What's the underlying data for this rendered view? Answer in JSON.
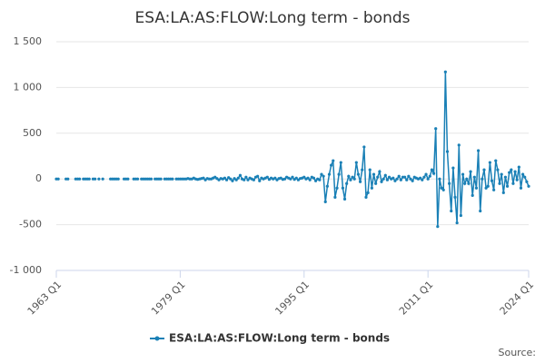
{
  "chart_data": {
    "type": "line",
    "title": "ESA:LA:AS:FLOW:Long term - bonds",
    "source": "Source:",
    "x": [
      "1963 Q1",
      "1963 Q2",
      "1963 Q3",
      "1963 Q4",
      "1964 Q1",
      "1964 Q2",
      "1964 Q3",
      "1964 Q4",
      "1965 Q1",
      "1965 Q2",
      "1965 Q3",
      "1965 Q4",
      "1966 Q1",
      "1966 Q2",
      "1966 Q3",
      "1966 Q4",
      "1967 Q1",
      "1967 Q2",
      "1967 Q3",
      "1967 Q4",
      "1968 Q1",
      "1968 Q2",
      "1968 Q3",
      "1968 Q4",
      "1969 Q1",
      "1969 Q2",
      "1969 Q3",
      "1969 Q4",
      "1970 Q1",
      "1970 Q2",
      "1970 Q3",
      "1970 Q4",
      "1971 Q1",
      "1971 Q2",
      "1971 Q3",
      "1971 Q4",
      "1972 Q1",
      "1972 Q2",
      "1972 Q3",
      "1972 Q4",
      "1973 Q1",
      "1973 Q2",
      "1973 Q3",
      "1973 Q4",
      "1974 Q1",
      "1974 Q2",
      "1974 Q3",
      "1974 Q4",
      "1975 Q1",
      "1975 Q2",
      "1975 Q3",
      "1975 Q4",
      "1976 Q1",
      "1976 Q2",
      "1976 Q3",
      "1976 Q4",
      "1977 Q1",
      "1977 Q2",
      "1977 Q3",
      "1977 Q4",
      "1978 Q1",
      "1978 Q2",
      "1978 Q3",
      "1978 Q4",
      "1979 Q1",
      "1979 Q2",
      "1979 Q3",
      "1979 Q4",
      "1980 Q1",
      "1980 Q2",
      "1980 Q3",
      "1980 Q4",
      "1981 Q1",
      "1981 Q2",
      "1981 Q3",
      "1981 Q4",
      "1982 Q1",
      "1982 Q2",
      "1982 Q3",
      "1982 Q4",
      "1983 Q1",
      "1983 Q2",
      "1983 Q3",
      "1983 Q4",
      "1984 Q1",
      "1984 Q2",
      "1984 Q3",
      "1984 Q4",
      "1985 Q1",
      "1985 Q2",
      "1985 Q3",
      "1985 Q4",
      "1986 Q1",
      "1986 Q2",
      "1986 Q3",
      "1986 Q4",
      "1987 Q1",
      "1987 Q2",
      "1987 Q3",
      "1987 Q4",
      "1988 Q1",
      "1988 Q2",
      "1988 Q3",
      "1988 Q4",
      "1989 Q1",
      "1989 Q2",
      "1989 Q3",
      "1989 Q4",
      "1990 Q1",
      "1990 Q2",
      "1990 Q3",
      "1990 Q4",
      "1991 Q1",
      "1991 Q2",
      "1991 Q3",
      "1991 Q4",
      "1992 Q1",
      "1992 Q2",
      "1992 Q3",
      "1992 Q4",
      "1993 Q1",
      "1993 Q2",
      "1993 Q3",
      "1993 Q4",
      "1994 Q1",
      "1994 Q2",
      "1994 Q3",
      "1994 Q4",
      "1995 Q1",
      "1995 Q2",
      "1995 Q3",
      "1995 Q4",
      "1996 Q1",
      "1996 Q2",
      "1996 Q3",
      "1996 Q4",
      "1997 Q1",
      "1997 Q2",
      "1997 Q3",
      "1997 Q4",
      "1998 Q1",
      "1998 Q2",
      "1998 Q3",
      "1998 Q4",
      "1999 Q1",
      "1999 Q2",
      "1999 Q3",
      "1999 Q4",
      "2000 Q1",
      "2000 Q2",
      "2000 Q3",
      "2000 Q4",
      "2001 Q1",
      "2001 Q2",
      "2001 Q3",
      "2001 Q4",
      "2002 Q1",
      "2002 Q2",
      "2002 Q3",
      "2002 Q4",
      "2003 Q1",
      "2003 Q2",
      "2003 Q3",
      "2003 Q4",
      "2004 Q1",
      "2004 Q2",
      "2004 Q3",
      "2004 Q4",
      "2005 Q1",
      "2005 Q2",
      "2005 Q3",
      "2005 Q4",
      "2006 Q1",
      "2006 Q2",
      "2006 Q3",
      "2006 Q4",
      "2007 Q1",
      "2007 Q2",
      "2007 Q3",
      "2007 Q4",
      "2008 Q1",
      "2008 Q2",
      "2008 Q3",
      "2008 Q4",
      "2009 Q1",
      "2009 Q2",
      "2009 Q3",
      "2009 Q4",
      "2010 Q1",
      "2010 Q2",
      "2010 Q3",
      "2010 Q4",
      "2011 Q1",
      "2011 Q2",
      "2011 Q3",
      "2011 Q4",
      "2012 Q1",
      "2012 Q2",
      "2012 Q3",
      "2012 Q4",
      "2013 Q1",
      "2013 Q2",
      "2013 Q3",
      "2013 Q4",
      "2014 Q1",
      "2014 Q2",
      "2014 Q3",
      "2014 Q4",
      "2015 Q1",
      "2015 Q2",
      "2015 Q3",
      "2015 Q4",
      "2016 Q1",
      "2016 Q2",
      "2016 Q3",
      "2016 Q4",
      "2017 Q1",
      "2017 Q2",
      "2017 Q3",
      "2017 Q4",
      "2018 Q1",
      "2018 Q2",
      "2018 Q3",
      "2018 Q4",
      "2019 Q1",
      "2019 Q2",
      "2019 Q3",
      "2019 Q4",
      "2020 Q1",
      "2020 Q2",
      "2020 Q3",
      "2020 Q4",
      "2021 Q1",
      "2021 Q2",
      "2021 Q3",
      "2021 Q4",
      "2022 Q1",
      "2022 Q2",
      "2022 Q3",
      "2022 Q4",
      "2023 Q1",
      "2023 Q2",
      "2023 Q3",
      "2023 Q4",
      "2024 Q1"
    ],
    "series": [
      {
        "name": "ESA:LA:AS:FLOW:Long term - bonds",
        "color": "#1a80b6",
        "values": [
          0,
          0,
          null,
          null,
          null,
          0,
          0,
          null,
          null,
          null,
          0,
          0,
          0,
          null,
          0,
          0,
          0,
          0,
          null,
          0,
          0,
          null,
          0,
          null,
          0,
          null,
          null,
          null,
          0,
          0,
          0,
          0,
          0,
          null,
          null,
          0,
          0,
          0,
          null,
          null,
          0,
          0,
          0,
          null,
          0,
          0,
          0,
          0,
          0,
          0,
          null,
          0,
          0,
          0,
          0,
          null,
          0,
          0,
          0,
          0,
          0,
          null,
          0,
          0,
          0,
          0,
          0,
          0,
          5,
          0,
          0,
          10,
          0,
          -5,
          0,
          5,
          10,
          -10,
          5,
          0,
          0,
          10,
          20,
          5,
          -10,
          5,
          0,
          10,
          -10,
          15,
          0,
          -20,
          5,
          -10,
          10,
          40,
          0,
          -10,
          20,
          -10,
          10,
          0,
          -10,
          20,
          30,
          -20,
          10,
          0,
          10,
          20,
          -5,
          10,
          0,
          10,
          -10,
          5,
          10,
          -5,
          0,
          20,
          10,
          0,
          20,
          -5,
          10,
          -10,
          5,
          10,
          20,
          0,
          10,
          -10,
          20,
          10,
          -20,
          0,
          -10,
          50,
          30,
          -250,
          -80,
          50,
          150,
          200,
          -200,
          -100,
          50,
          180,
          -100,
          -220,
          -50,
          30,
          -10,
          20,
          0,
          180,
          50,
          -30,
          100,
          350,
          -200,
          -150,
          100,
          -100,
          50,
          -50,
          20,
          80,
          -30,
          0,
          40,
          -10,
          20,
          0,
          10,
          -20,
          0,
          30,
          -10,
          20,
          20,
          -10,
          30,
          0,
          -20,
          20,
          10,
          0,
          10,
          -10,
          20,
          50,
          0,
          30,
          100,
          60,
          550,
          -520,
          0,
          -100,
          -120,
          1170,
          300,
          -50,
          -350,
          120,
          -200,
          -480,
          370,
          -400,
          50,
          -50,
          0,
          -50,
          80,
          -180,
          20,
          -100,
          310,
          -350,
          0,
          100,
          -100,
          -80,
          180,
          -20,
          -120,
          200,
          100,
          -50,
          50,
          -150,
          20,
          -80,
          70,
          100,
          -50,
          80,
          -10,
          130,
          -100,
          50,
          20,
          -30,
          -80
        ]
      }
    ],
    "xticks": [
      "1963 Q1",
      "1979 Q1",
      "1995 Q1",
      "2011 Q1",
      "2024 Q1"
    ],
    "ylim": [
      -1000,
      1500
    ],
    "yticks": [
      {
        "value": -1000,
        "label": "-1 000"
      },
      -500,
      0,
      500,
      {
        "value": 1000,
        "label": "1 000"
      },
      {
        "value": 1500,
        "label": "1 500"
      }
    ],
    "grid": true
  }
}
